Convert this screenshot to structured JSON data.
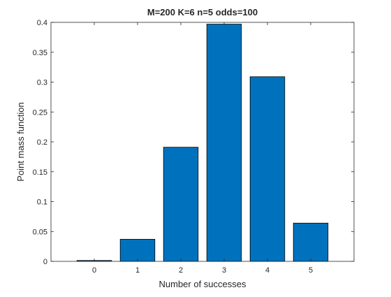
{
  "chart_data": {
    "type": "bar",
    "title": "M=200 K=6 n=5 odds=100",
    "xlabel": "Number of successes",
    "ylabel": "Point mass function",
    "categories": [
      "0",
      "1",
      "2",
      "3",
      "4",
      "5"
    ],
    "x": [
      0,
      1,
      2,
      3,
      4,
      5
    ],
    "values": [
      0.0015,
      0.037,
      0.191,
      0.397,
      0.309,
      0.064
    ],
    "xlim": [
      -1,
      6
    ],
    "ylim": [
      0,
      0.4
    ],
    "yticks": [
      0,
      0.05,
      0.1,
      0.15,
      0.2,
      0.25,
      0.3,
      0.35,
      0.4
    ],
    "ytick_labels": [
      "0",
      "0.05",
      "0.1",
      "0.15",
      "0.2",
      "0.25",
      "0.3",
      "0.35",
      "0.4"
    ],
    "bar_color": "#0072BD",
    "grid": false,
    "legend": "none"
  }
}
